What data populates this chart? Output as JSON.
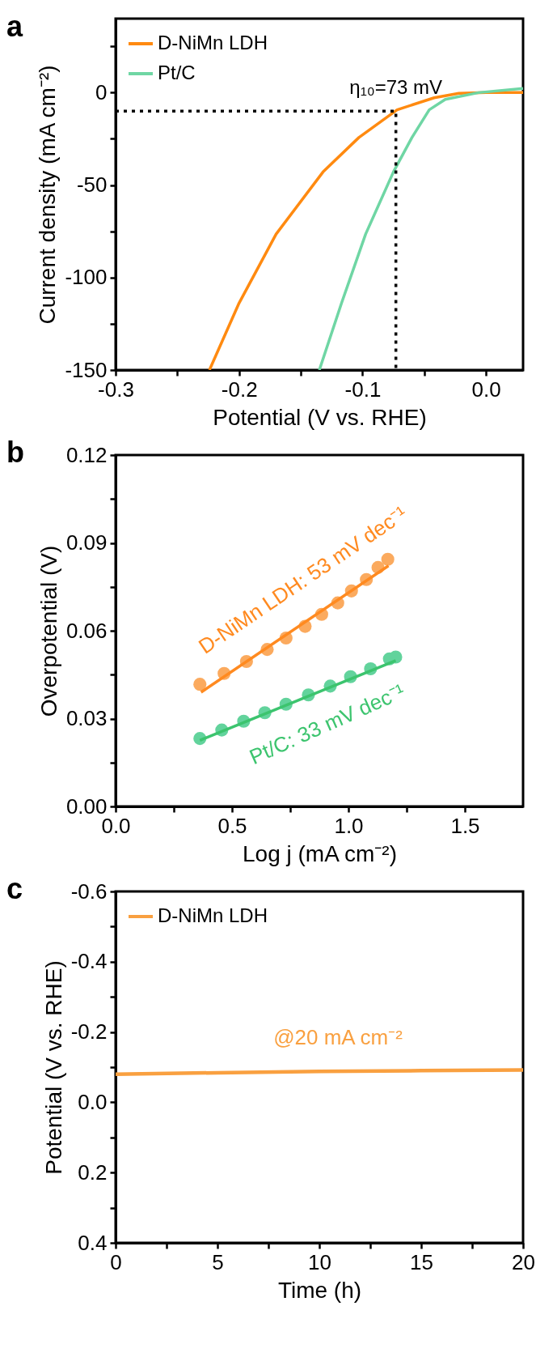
{
  "chart_data": [
    {
      "type": "line",
      "title": "a",
      "xlabel": "Potential (V vs. RHE)",
      "ylabel": "Current density (mA cm⁻²)",
      "xlim": [
        -0.3,
        0.03
      ],
      "ylim": [
        -150,
        40
      ],
      "xticks": [
        -0.3,
        {
          "value": -0.25,
          "label": null
        },
        -0.2,
        {
          "value": -0.15,
          "label": null
        },
        -0.1,
        {
          "value": -0.05,
          "label": null
        },
        {
          "value": 0,
          "label": "0.0"
        }
      ],
      "yticks": [
        -150,
        {
          "value": -125,
          "label": null
        },
        -100,
        {
          "value": -75,
          "label": null
        },
        -50,
        {
          "value": -25,
          "label": null
        },
        0,
        {
          "value": 25,
          "label": null
        }
      ],
      "legend": "top left",
      "grid": false,
      "series": [
        {
          "name": "D-NiMn LDH",
          "color": "#ff8a10",
          "x": [
            -0.224,
            -0.2,
            -0.17,
            -0.132,
            -0.103,
            -0.072,
            -0.042,
            -0.022,
            0,
            0.03
          ],
          "values": [
            -150,
            -113.8,
            -76.5,
            -42.9,
            -24.3,
            -9.3,
            -2.8,
            -0.4,
            0,
            0
          ]
        },
        {
          "name": "Pt/C",
          "color": "#6fd6a4",
          "x": [
            -0.135,
            -0.117,
            -0.0975,
            -0.075,
            -0.06,
            -0.046,
            -0.033,
            -0.006,
            0.03
          ],
          "values": [
            -150,
            -113.8,
            -76.5,
            -42.9,
            -24.3,
            -9.3,
            -3.7,
            0,
            2.2
          ]
        },
        {
          "color": "#000000",
          "line_style": "dotted",
          "x": [
            -0.3,
            -0.073,
            -0.073
          ],
          "values": [
            -10,
            -10,
            -150
          ]
        }
      ],
      "annotations": [
        {
          "text": "η₁₀=73 mV",
          "x": -0.073,
          "y": -10
        }
      ]
    },
    {
      "type": "scatter",
      "title": "b",
      "xlabel": "Log j (mA cm⁻²)",
      "ylabel": "Overpotential (V)",
      "xlim": [
        0,
        1.75
      ],
      "ylim": [
        0,
        0.12
      ],
      "xticks": [
        {
          "value": 0,
          "label": "0.0"
        },
        {
          "value": 0.25,
          "label": null
        },
        0.5,
        {
          "value": 0.75,
          "label": null
        },
        {
          "value": 1,
          "label": "1.0"
        },
        {
          "value": 1.25,
          "label": null
        },
        1.5
      ],
      "yticks": [
        {
          "value": 0,
          "label": "0.00"
        },
        {
          "value": 0.015,
          "label": null
        },
        0.03,
        {
          "value": 0.045,
          "label": null
        },
        0.06,
        {
          "value": 0.075,
          "label": null
        },
        0.09,
        {
          "value": 0.105,
          "label": null
        },
        0.12
      ],
      "grid": false,
      "series": [
        {
          "marker": "circle",
          "color": "#fbaa5e",
          "x": [
            0.362,
            0.466,
            0.562,
            0.651,
            0.732,
            0.814,
            0.885,
            0.954,
            1.013,
            1.077,
            1.127,
            1.169
          ],
          "values": [
            0.0417,
            0.0454,
            0.0495,
            0.0536,
            0.0575,
            0.0615,
            0.0656,
            0.0695,
            0.0736,
            0.0775,
            0.0816,
            0.0844
          ]
        },
        {
          "type": "line",
          "color": "#ff8a20",
          "x": [
            0.367,
            1.172
          ],
          "values": [
            0.039,
            0.0822
          ]
        },
        {
          "marker": "circle",
          "color": "#62d39c",
          "x": [
            0.362,
            0.456,
            0.55,
            0.641,
            0.732,
            0.828,
            0.922,
            1.009,
            1.095,
            1.176,
            1.203
          ],
          "values": [
            0.0232,
            0.0261,
            0.0291,
            0.032,
            0.0349,
            0.0381,
            0.0411,
            0.0443,
            0.047,
            0.0504,
            0.051
          ]
        },
        {
          "type": "line",
          "color": "#3cc46e",
          "x": [
            0.362,
            1.203
          ],
          "values": [
            0.0226,
            0.0498
          ]
        }
      ],
      "annotations": [
        "D-NiMn LDH: 53 mV dec⁻¹",
        "Pt/C: 33 mV dec⁻¹"
      ]
    },
    {
      "type": "line",
      "title": "c",
      "xlabel": "Time (h)",
      "ylabel": "Potential (V vs. RHE)",
      "xlim": [
        0,
        20
      ],
      "ylim": [
        0.4,
        -0.6
      ],
      "xticks": [
        0,
        {
          "value": 2.5,
          "label": null
        },
        5,
        {
          "value": 7.5,
          "label": null
        },
        10,
        {
          "value": 12.5,
          "label": null
        },
        15,
        {
          "value": 17.5,
          "label": null
        },
        20
      ],
      "yticks": [
        -0.6,
        {
          "value": -0.5,
          "label": null
        },
        -0.4,
        {
          "value": -0.3,
          "label": null
        },
        -0.2,
        {
          "value": -0.1,
          "label": null
        },
        {
          "value": 0,
          "label": "0.0"
        },
        {
          "value": 0.1,
          "label": null
        },
        0.2,
        {
          "value": 0.3,
          "label": null
        },
        0.4
      ],
      "legend": "top left",
      "grid": false,
      "series": [
        {
          "name": "D-NiMn LDH",
          "color": "#f9a040",
          "x": [
            0,
            5,
            10,
            15,
            20
          ],
          "values": [
            -0.08,
            -0.084,
            -0.088,
            -0.09,
            -0.092
          ]
        }
      ],
      "annotations": [
        "@20 mA cm⁻²"
      ]
    }
  ]
}
